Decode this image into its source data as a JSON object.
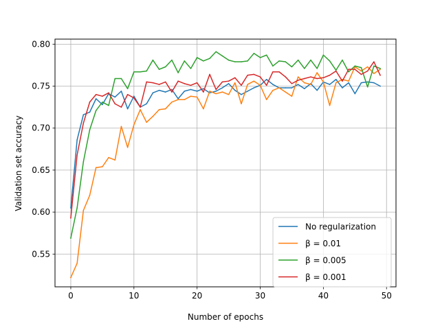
{
  "chart_data": {
    "type": "line",
    "title": "",
    "xlabel": "Number of epochs",
    "ylabel": "Validation set accuracy",
    "xlim": [
      -2.5,
      51.5
    ],
    "ylim": [
      0.511,
      0.806
    ],
    "xticks": [
      0,
      10,
      20,
      30,
      40,
      50
    ],
    "xtick_labels": [
      "0",
      "10",
      "20",
      "30",
      "40",
      "50"
    ],
    "yticks": [
      0.55,
      0.6,
      0.65,
      0.7,
      0.75,
      0.8
    ],
    "ytick_labels": [
      "0.55",
      "0.60",
      "0.65",
      "0.70",
      "0.75",
      "0.80"
    ],
    "grid": true,
    "legend_position": "lower-right",
    "x": [
      0,
      1,
      2,
      3,
      4,
      5,
      6,
      7,
      8,
      9,
      10,
      11,
      12,
      13,
      14,
      15,
      16,
      17,
      18,
      19,
      20,
      21,
      22,
      23,
      24,
      25,
      26,
      27,
      28,
      29,
      30,
      31,
      32,
      33,
      34,
      35,
      36,
      37,
      38,
      39,
      40,
      41,
      42,
      43,
      44,
      45,
      46,
      47,
      48,
      49
    ],
    "series": [
      {
        "name": "No regularization",
        "legend_label": "No regularization",
        "color": "#1f77b4",
        "values": [
          0.605,
          0.686,
          0.716,
          0.719,
          0.735,
          0.728,
          0.741,
          0.737,
          0.744,
          0.723,
          0.738,
          0.725,
          0.729,
          0.742,
          0.745,
          0.743,
          0.746,
          0.735,
          0.744,
          0.746,
          0.744,
          0.747,
          0.742,
          0.744,
          0.748,
          0.753,
          0.745,
          0.74,
          0.744,
          0.748,
          0.751,
          0.758,
          0.752,
          0.748,
          0.748,
          0.748,
          0.752,
          0.747,
          0.753,
          0.745,
          0.755,
          0.752,
          0.758,
          0.748,
          0.754,
          0.741,
          0.754,
          0.755,
          0.754,
          0.75
        ]
      },
      {
        "name": "beta = 0.01",
        "legend_label": "β = 0.01",
        "color": "#ff7f0e",
        "values": [
          0.522,
          0.539,
          0.602,
          0.62,
          0.653,
          0.654,
          0.665,
          0.662,
          0.702,
          0.677,
          0.704,
          0.722,
          0.707,
          0.714,
          0.722,
          0.723,
          0.731,
          0.734,
          0.734,
          0.738,
          0.737,
          0.723,
          0.744,
          0.741,
          0.743,
          0.74,
          0.754,
          0.729,
          0.752,
          0.756,
          0.751,
          0.734,
          0.745,
          0.748,
          0.743,
          0.738,
          0.761,
          0.754,
          0.752,
          0.766,
          0.755,
          0.727,
          0.754,
          0.758,
          0.756,
          0.773,
          0.768,
          0.773,
          0.765,
          0.77
        ]
      },
      {
        "name": "beta = 0.005",
        "legend_label": "β = 0.005",
        "color": "#2ca02c",
        "values": [
          0.569,
          0.605,
          0.66,
          0.698,
          0.721,
          0.731,
          0.727,
          0.759,
          0.759,
          0.747,
          0.767,
          0.767,
          0.768,
          0.781,
          0.77,
          0.773,
          0.781,
          0.766,
          0.78,
          0.771,
          0.784,
          0.78,
          0.783,
          0.791,
          0.786,
          0.781,
          0.779,
          0.779,
          0.78,
          0.789,
          0.784,
          0.787,
          0.774,
          0.78,
          0.779,
          0.773,
          0.781,
          0.771,
          0.781,
          0.771,
          0.787,
          0.78,
          0.769,
          0.781,
          0.767,
          0.774,
          0.772,
          0.749,
          0.774,
          0.771
        ]
      },
      {
        "name": "beta = 0.001",
        "legend_label": "β = 0.001",
        "color": "#d62728",
        "values": [
          0.593,
          0.668,
          0.706,
          0.731,
          0.74,
          0.738,
          0.742,
          0.729,
          0.725,
          0.74,
          0.736,
          0.725,
          0.755,
          0.754,
          0.752,
          0.755,
          0.743,
          0.756,
          0.753,
          0.751,
          0.754,
          0.743,
          0.764,
          0.746,
          0.755,
          0.756,
          0.76,
          0.751,
          0.763,
          0.764,
          0.761,
          0.751,
          0.767,
          0.767,
          0.761,
          0.753,
          0.757,
          0.759,
          0.761,
          0.759,
          0.76,
          0.763,
          0.768,
          0.756,
          0.77,
          0.77,
          0.764,
          0.768,
          0.779,
          0.763
        ]
      }
    ]
  }
}
